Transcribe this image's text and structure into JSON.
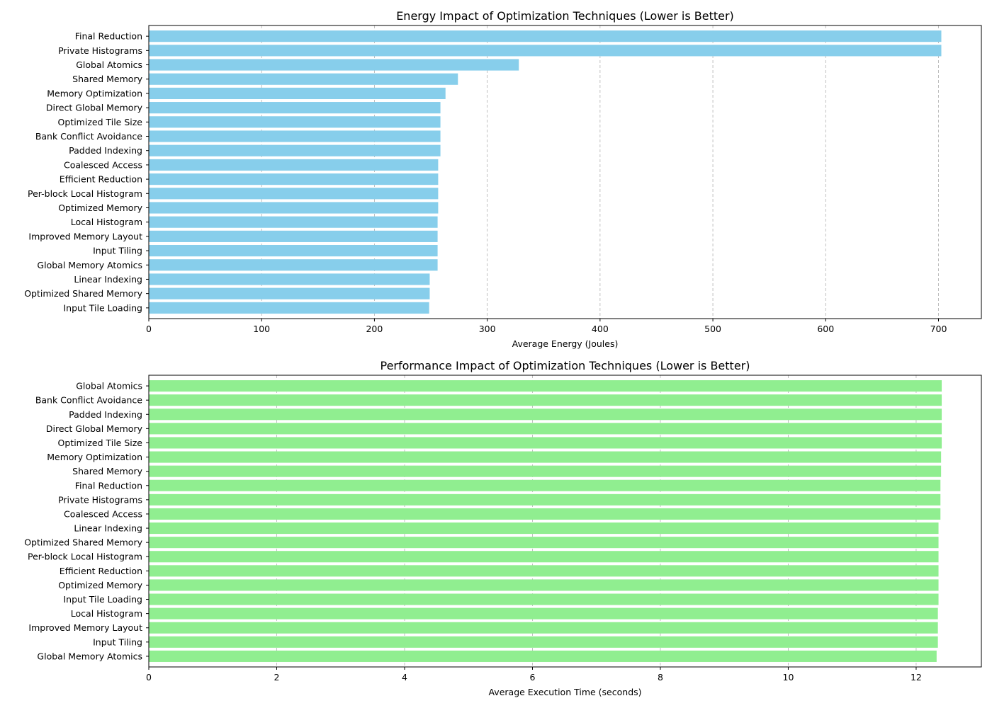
{
  "chart_data": [
    {
      "type": "bar",
      "orientation": "horizontal",
      "title": "Energy Impact of Optimization Techniques (Lower is Better)",
      "xlabel": "Average Energy (Joules)",
      "ylabel": "",
      "xlim": [
        0,
        738
      ],
      "xticks": [
        0,
        100,
        200,
        300,
        400,
        500,
        600,
        700
      ],
      "grid": "x-dashed",
      "bar_color": "#87ceeb",
      "categories": [
        "Final Reduction",
        "Private Histograms",
        "Global Atomics",
        "Shared Memory",
        "Memory Optimization",
        "Direct Global Memory",
        "Optimized Tile Size",
        "Bank Conflict Avoidance",
        "Padded Indexing",
        "Coalesced Access",
        "Efficient Reduction",
        "Per-block Local Histogram",
        "Optimized Memory",
        "Local Histogram",
        "Improved Memory Layout",
        "Input Tiling",
        "Global Memory Atomics",
        "Linear Indexing",
        "Optimized Shared Memory",
        "Input Tile Loading"
      ],
      "values": [
        702.5,
        702.5,
        328,
        274,
        263,
        258.5,
        258.5,
        258.5,
        258.5,
        256.5,
        256.5,
        256.5,
        256.5,
        256,
        256,
        256,
        256,
        249,
        249,
        248.5
      ]
    },
    {
      "type": "bar",
      "orientation": "horizontal",
      "title": "Performance Impact of Optimization Techniques (Lower is Better)",
      "xlabel": "Average Execution Time (seconds)",
      "ylabel": "",
      "xlim": [
        0,
        13.02
      ],
      "xticks": [
        0,
        2,
        4,
        6,
        8,
        10,
        12
      ],
      "grid": "x-dashed",
      "bar_color": "#90ee90",
      "categories": [
        "Global Atomics",
        "Bank Conflict Avoidance",
        "Padded Indexing",
        "Direct Global Memory",
        "Optimized Tile Size",
        "Memory Optimization",
        "Shared Memory",
        "Final Reduction",
        "Private Histograms",
        "Coalesced Access",
        "Linear Indexing",
        "Optimized Shared Memory",
        "Per-block Local Histogram",
        "Efficient Reduction",
        "Optimized Memory",
        "Input Tile Loading",
        "Local Histogram",
        "Improved Memory Layout",
        "Input Tiling",
        "Global Memory Atomics"
      ],
      "values": [
        12.4,
        12.4,
        12.4,
        12.4,
        12.4,
        12.39,
        12.39,
        12.38,
        12.38,
        12.38,
        12.35,
        12.35,
        12.35,
        12.35,
        12.35,
        12.35,
        12.34,
        12.34,
        12.34,
        12.32
      ]
    }
  ]
}
